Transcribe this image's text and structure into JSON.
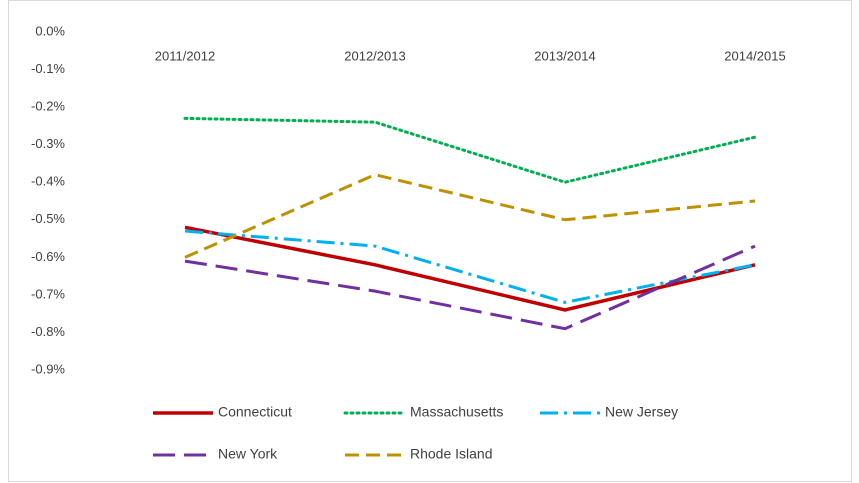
{
  "chart_data": {
    "type": "line",
    "categories": [
      "2011/2012",
      "2012/2013",
      "2013/2014",
      "2014/2015"
    ],
    "series": [
      {
        "name": "Connecticut",
        "color": "#c00000",
        "dash": "solid",
        "values": [
          -0.52,
          -0.62,
          -0.74,
          -0.62
        ]
      },
      {
        "name": "Massachusetts",
        "color": "#00b050",
        "dash": "dot",
        "values": [
          -0.23,
          -0.24,
          -0.4,
          -0.28
        ]
      },
      {
        "name": "New Jersey",
        "color": "#00b0f0",
        "dash": "dashdot",
        "values": [
          -0.53,
          -0.57,
          -0.72,
          -0.62
        ]
      },
      {
        "name": "New York",
        "color": "#7030a0",
        "dash": "longdash",
        "values": [
          -0.61,
          -0.69,
          -0.79,
          -0.57
        ]
      },
      {
        "name": "Rhode Island",
        "color": "#bf9000",
        "dash": "dash",
        "values": [
          -0.6,
          -0.38,
          -0.5,
          -0.45
        ]
      }
    ],
    "ylim": [
      -0.9,
      0
    ],
    "yticks": [
      {
        "value": 0,
        "label": "0.0%"
      },
      {
        "value": -0.1,
        "label": "-0.1%"
      },
      {
        "value": -0.2,
        "label": "-0.2%"
      },
      {
        "value": -0.3,
        "label": "-0.3%"
      },
      {
        "value": -0.4,
        "label": "-0.4%"
      },
      {
        "value": -0.5,
        "label": "-0.5%"
      },
      {
        "value": -0.6,
        "label": "-0.6%"
      },
      {
        "value": -0.7,
        "label": "-0.7%"
      },
      {
        "value": -0.8,
        "label": "-0.8%"
      },
      {
        "value": -0.9,
        "label": "-0.9%"
      }
    ],
    "grid": false,
    "legend": "bottom"
  }
}
